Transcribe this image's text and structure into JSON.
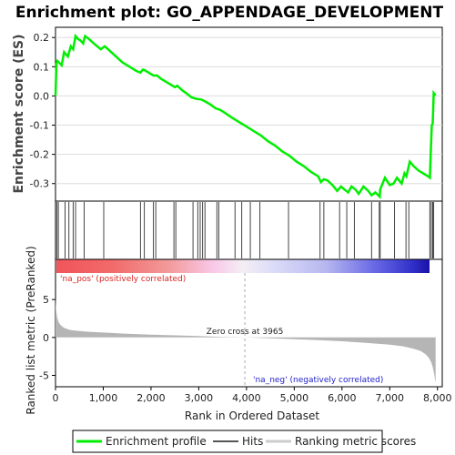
{
  "chart_data": {
    "type": "line",
    "title": "Enrichment plot: GO_APPENDAGE_DEVELOPMENT",
    "top_panel": {
      "ylabel": "Enrichment score (ES)",
      "ylim": [
        -0.36,
        0.235
      ],
      "yticks": [
        -0.3,
        -0.2,
        -0.1,
        0.0,
        0.1,
        0.2
      ],
      "ytick_labels": [
        "-0.3",
        "-0.2",
        "-0.1",
        "0.0",
        "0.1",
        "0.2"
      ],
      "series": [
        {
          "name": "Enrichment profile",
          "color": "#00ee00",
          "x": [
            0,
            20,
            40,
            130,
            180,
            260,
            320,
            370,
            420,
            470,
            520,
            580,
            620,
            700,
            800,
            950,
            1030,
            1100,
            1200,
            1300,
            1400,
            1500,
            1600,
            1700,
            1780,
            1830,
            1870,
            1950,
            2050,
            2130,
            2200,
            2300,
            2400,
            2500,
            2550,
            2650,
            2750,
            2850,
            2950,
            3050,
            3150,
            3250,
            3350,
            3450,
            3550,
            3700,
            3850,
            4000,
            4150,
            4300,
            4450,
            4600,
            4750,
            4900,
            5050,
            5200,
            5350,
            5500,
            5560,
            5620,
            5700,
            5800,
            5900,
            5980,
            6050,
            6130,
            6200,
            6280,
            6350,
            6450,
            6550,
            6620,
            6700,
            6790,
            6800,
            6900,
            7000,
            7080,
            7150,
            7250,
            7310,
            7350,
            7420,
            7500,
            7600,
            7700,
            7800,
            7840,
            7860,
            7880,
            7900,
            7920,
            7960
          ],
          "y": [
            0.0,
            0.11,
            0.12,
            0.105,
            0.15,
            0.135,
            0.17,
            0.16,
            0.205,
            0.195,
            0.19,
            0.18,
            0.205,
            0.195,
            0.18,
            0.16,
            0.17,
            0.16,
            0.145,
            0.13,
            0.115,
            0.105,
            0.095,
            0.085,
            0.08,
            0.09,
            0.088,
            0.08,
            0.07,
            0.07,
            0.06,
            0.05,
            0.04,
            0.03,
            0.035,
            0.02,
            0.008,
            -0.005,
            -0.01,
            -0.012,
            -0.02,
            -0.03,
            -0.042,
            -0.048,
            -0.058,
            -0.075,
            -0.09,
            -0.105,
            -0.12,
            -0.135,
            -0.155,
            -0.17,
            -0.19,
            -0.205,
            -0.225,
            -0.24,
            -0.26,
            -0.275,
            -0.295,
            -0.285,
            -0.29,
            -0.305,
            -0.325,
            -0.31,
            -0.32,
            -0.33,
            -0.31,
            -0.32,
            -0.335,
            -0.31,
            -0.325,
            -0.34,
            -0.33,
            -0.345,
            -0.32,
            -0.28,
            -0.305,
            -0.3,
            -0.28,
            -0.3,
            -0.265,
            -0.275,
            -0.225,
            -0.24,
            -0.255,
            -0.265,
            -0.275,
            -0.28,
            -0.19,
            -0.1,
            -0.095,
            0.01,
            0.002
          ]
        }
      ]
    },
    "hits_panel": {
      "name": "Hits",
      "positions": [
        30,
        60,
        200,
        280,
        370,
        420,
        600,
        1010,
        1780,
        1860,
        2050,
        2100,
        2480,
        2520,
        2880,
        2980,
        3030,
        3080,
        3130,
        3380,
        3420,
        3760,
        3900,
        4080,
        4280,
        4880,
        5540,
        5620,
        5950,
        6100,
        6260,
        6620,
        6780,
        6800,
        7100,
        7340,
        7400,
        7840,
        7870,
        7900,
        7920
      ]
    },
    "ranked_panel": {
      "name": "Ranking metric scores",
      "ylabel": "Ranked list metric (PreRanked)",
      "ylim": [
        -6.5,
        8.5
      ],
      "yticks": [
        -5,
        0,
        5
      ],
      "ytick_labels": [
        "-5",
        "0",
        "5"
      ],
      "profile_x": [
        0,
        10,
        30,
        60,
        100,
        150,
        200,
        300,
        400,
        500,
        700,
        1000,
        1500,
        2000,
        2500,
        3000,
        3500,
        3965,
        4500,
        5000,
        5500,
        6000,
        6500,
        7000,
        7300,
        7500,
        7650,
        7750,
        7820,
        7870,
        7900,
        7930,
        7950,
        7960
      ],
      "profile_y": [
        5.2,
        3.8,
        2.8,
        2.1,
        1.7,
        1.4,
        1.2,
        1.0,
        0.9,
        0.85,
        0.75,
        0.65,
        0.5,
        0.38,
        0.28,
        0.18,
        0.08,
        0.0,
        -0.1,
        -0.22,
        -0.35,
        -0.5,
        -0.7,
        -0.95,
        -1.2,
        -1.5,
        -1.8,
        -2.2,
        -2.7,
        -3.3,
        -3.9,
        -4.8,
        -5.6,
        -6.0
      ],
      "zero_cross_label": "Zero cross at 3965",
      "zero_cross_x": 3965,
      "pos_label": "'na_pos' (positively correlated)",
      "neg_label": "'na_neg' (negatively correlated)"
    },
    "xlabel": "Rank in Ordered Dataset",
    "xlim": [
      0,
      8100
    ],
    "xticks": [
      0,
      1000,
      2000,
      3000,
      4000,
      5000,
      6000,
      7000,
      8000
    ],
    "xtick_labels": [
      "0",
      "1,000",
      "2,000",
      "3,000",
      "4,000",
      "5,000",
      "6,000",
      "7,000",
      "8,000"
    ],
    "legend": {
      "placement": "bottom",
      "items": [
        {
          "label": "Enrichment profile",
          "color": "#00ee00"
        },
        {
          "label": "Hits",
          "color": "#555555"
        },
        {
          "label": "Ranking metric scores",
          "color": "#cccccc"
        }
      ]
    },
    "colors": {
      "profile": "#00ee00",
      "pos_label": "#dd2222",
      "neg_label": "#2222cc",
      "ranked_fill": "#b0b0b0"
    }
  }
}
